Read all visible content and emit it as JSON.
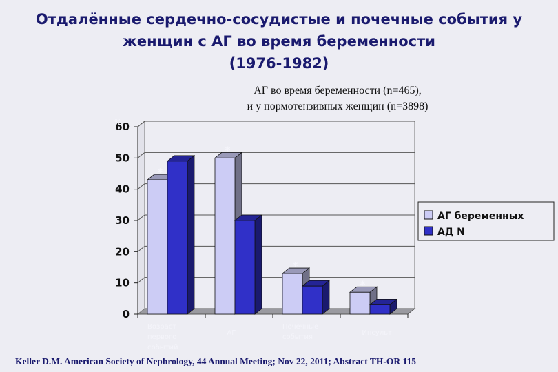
{
  "header": {
    "title_lines": [
      "Отдалённые сердечно-сосудистые и почечные события у",
      "женщин с АГ во время беременности",
      "(1976-1982)"
    ]
  },
  "subtitle_lines": [
    "АГ во время беременности (n=465),",
    "и у нормотензивных женщин (n=3898)"
  ],
  "footer": "Keller D.M. American Society of Nephrology, 44 Annual Meeting; Nov 22, 2011; Abstract TH-OR 115",
  "colors": {
    "series1": "#ccccf5",
    "series2": "#3030c8",
    "plot_bg": "#ededf3"
  },
  "chart_data": {
    "type": "bar",
    "ylabel": "%",
    "ylim": [
      0,
      60
    ],
    "yticks": [
      0,
      10,
      20,
      30,
      40,
      50,
      60
    ],
    "grid": true,
    "legend_position": "right",
    "categories": [
      [
        "Возраст",
        "первого",
        "событий"
      ],
      [
        "АГ"
      ],
      [
        "Почечные",
        "события"
      ],
      [
        "Инсульт"
      ]
    ],
    "series": [
      {
        "name": "АГ беременных",
        "values": [
          43,
          50,
          13,
          7
        ]
      },
      {
        "name": "АД N",
        "values": [
          49,
          30,
          9,
          3
        ]
      }
    ],
    "annotations": [
      "*",
      "*",
      "*",
      "*"
    ]
  }
}
